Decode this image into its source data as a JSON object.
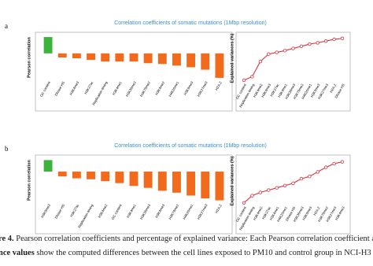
{
  "panel_labels": [
    "a",
    "b"
  ],
  "chart_data": [
    {
      "type": "bar",
      "title": "Correlation coefficients of somatic mutations (1Mbp resolution)",
      "y_label": "Pearson correlation",
      "categories": [
        "GC content",
        "DNase HS",
        "H3K4me3",
        "H3K27ac",
        "Replication timing",
        "H3K4me1",
        "H3K36me3",
        "H3K79me2",
        "H3K4me2",
        "H4K20me1",
        "H3K9me3",
        "H3K27me3",
        "H2A.Z"
      ],
      "values": [
        0.2,
        -0.05,
        -0.06,
        -0.08,
        -0.1,
        -0.1,
        -0.1,
        -0.12,
        -0.13,
        -0.15,
        -0.17,
        -0.2,
        -0.3
      ],
      "colors": [
        "#3cb43c",
        "#f26b1d",
        "#f26b1d",
        "#f26b1d",
        "#f26b1d",
        "#f26b1d",
        "#f26b1d",
        "#f26b1d",
        "#f26b1d",
        "#f26b1d",
        "#f26b1d",
        "#f26b1d",
        "#f26b1d"
      ],
      "ylim": [
        -0.32,
        0.22
      ]
    },
    {
      "type": "line",
      "y_label": "Explained variances (%)",
      "color": "#d9333f",
      "categories": [
        "GC content",
        "Replication timing",
        "H3K4me2",
        "H3K4me3",
        "H3K27ac",
        "H3K4me1",
        "H3K36me3",
        "H3K79me2",
        "H4K20me1",
        "H3K9me3",
        "H3K27me3",
        "H2A.Z",
        "DNase HS"
      ],
      "values": [
        2,
        10,
        45,
        62,
        66,
        70,
        75,
        80,
        85,
        88,
        92,
        96,
        98
      ],
      "ylim": [
        0,
        105
      ]
    },
    {
      "type": "bar",
      "title": "Correlation coefficients of somatic mutations (1Mbp resolution)",
      "y_label": "Pearson correlation",
      "categories": [
        "H3K9me3",
        "DNase HS",
        "H3K27ac",
        "Replication timing",
        "H3K4me2",
        "GC content",
        "H3K4me1",
        "H3K36me3",
        "H3K4me3",
        "H3K79me2",
        "H4K20me1",
        "H3K27me3",
        "H2A.Z"
      ],
      "values": [
        0.12,
        -0.05,
        -0.07,
        -0.08,
        -0.1,
        -0.12,
        -0.15,
        -0.17,
        -0.2,
        -0.22,
        -0.25,
        -0.28,
        -0.3
      ],
      "colors": [
        "#3cb43c",
        "#f26b1d",
        "#f26b1d",
        "#f26b1d",
        "#f26b1d",
        "#f26b1d",
        "#f26b1d",
        "#f26b1d",
        "#f26b1d",
        "#f26b1d",
        "#f26b1d",
        "#f26b1d",
        "#f26b1d"
      ],
      "ylim": [
        -0.32,
        0.14
      ]
    },
    {
      "type": "line",
      "y_label": "Explained variances (%)",
      "color": "#d9333f",
      "categories": [
        "GC content",
        "Replication timing",
        "H3K4me2",
        "H3K27ac",
        "H3K4me1",
        "H4K20me1",
        "DNase HS",
        "H3K36me3",
        "H3K9me3",
        "H2A.Z",
        "H3K79me2",
        "H3K27me3",
        "H3K4me3"
      ],
      "values": [
        2,
        18,
        25,
        30,
        35,
        40,
        45,
        55,
        60,
        70,
        80,
        88,
        92
      ],
      "ylim": [
        0,
        100
      ]
    }
  ],
  "caption": [
    {
      "bold": "re 4.",
      "text": " Pearson correlation coefficients and percentage of explained variance: Each Pearson correlation coefficient and t"
    },
    {
      "bold": "nce values",
      "text": " show the computed differences between the cell lines exposed to PM10 and control group in NCI-H3"
    }
  ]
}
